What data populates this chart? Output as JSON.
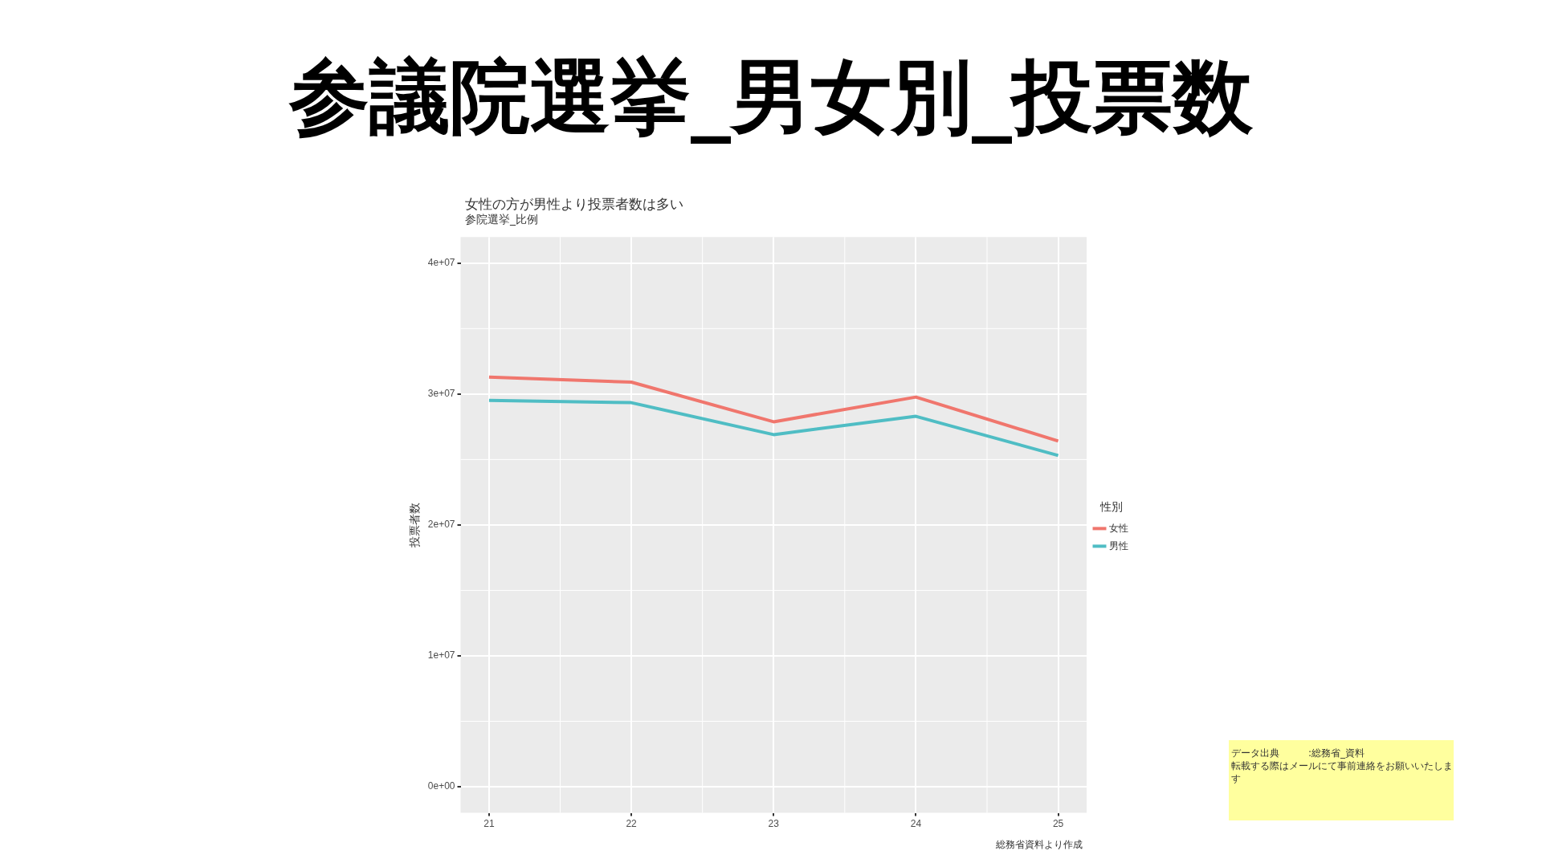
{
  "chart_data": {
    "type": "line",
    "title": "参議院選挙_男女別_投票数",
    "subtitle": "女性の方が男性より投票者数は多い",
    "ylabel": "投票者数",
    "legend_title": "性別",
    "annotations": [
      "参院選挙_比例",
      "総務省資料より作成",
      "データ出典　　　:総務省_資料",
      "転載する際はメールにて事前連絡をお願いいたします"
    ],
    "x": [
      21,
      22,
      23,
      24,
      25
    ],
    "series": [
      {
        "name": "女性",
        "color": "#f0766d",
        "values": [
          31300000,
          30910000,
          27880000,
          29770000,
          26410000
        ]
      },
      {
        "name": "男性",
        "color": "#4fbdc4",
        "values": [
          29510000,
          29340000,
          26900000,
          28300000,
          25310000
        ]
      }
    ],
    "xlim": [
      20.8,
      25.2
    ],
    "ylim": [
      -2000000,
      42000000
    ],
    "xticks": [
      21,
      22,
      23,
      24,
      25
    ],
    "yticks": [
      {
        "value": 0,
        "label": "0e+00"
      },
      {
        "value": 10000000,
        "label": "1e+07"
      },
      {
        "value": 20000000,
        "label": "2e+07"
      },
      {
        "value": 30000000,
        "label": "3e+07"
      },
      {
        "value": 40000000,
        "label": "4e+07"
      }
    ],
    "grid": true,
    "legend": "right",
    "marker": "none",
    "line_style": "solid"
  }
}
